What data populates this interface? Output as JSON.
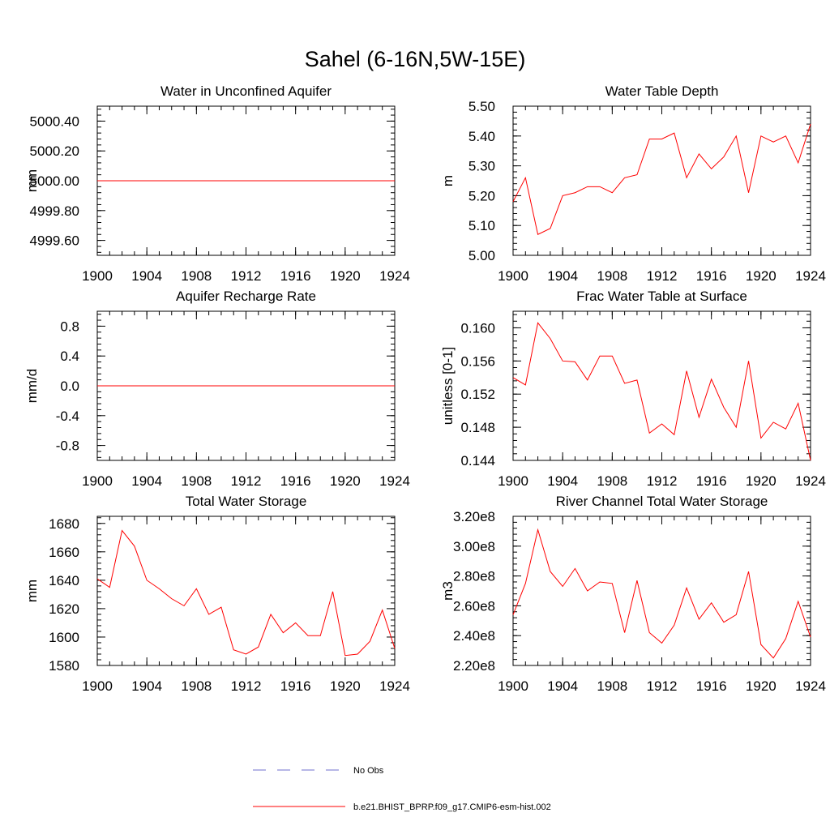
{
  "figure": {
    "title": "Sahel (6-16N,5W-15E)"
  },
  "colors": {
    "model_line": "#ff0000",
    "obs_line": "#6f6fcf",
    "axes": "#000000",
    "background": "#ffffff"
  },
  "legend": {
    "placement": "bottom-center",
    "items": [
      {
        "label": "No Obs",
        "style": "dashed",
        "color": "#6f6fcf"
      },
      {
        "label": "b.e21.BHIST_BPRP.f09_g17.CMIP6-esm-hist.002",
        "style": "solid",
        "color": "#ff0000"
      }
    ]
  },
  "chart_data": [
    {
      "type": "line",
      "title": "Water in Unconfined Aquifer",
      "xlabel": "",
      "ylabel": "mm",
      "xlim": [
        1900,
        1924
      ],
      "ylim": [
        4999.5,
        5000.5
      ],
      "xticks": [
        1900,
        1904,
        1908,
        1912,
        1916,
        1920,
        1924
      ],
      "yticks": [
        4999.6,
        4999.8,
        5000.0,
        5000.2,
        5000.4
      ],
      "ytick_labels": [
        "4999.60",
        "4999.80",
        "5000.00",
        "5000.20",
        "5000.40"
      ],
      "grid": false,
      "x": [
        1900,
        1924
      ],
      "series": [
        {
          "values": [
            5000.0,
            5000.0
          ]
        }
      ]
    },
    {
      "type": "line",
      "title": "Water Table Depth",
      "xlabel": "",
      "ylabel": "m",
      "xlim": [
        1900,
        1924
      ],
      "ylim": [
        5.0,
        5.5
      ],
      "xticks": [
        1900,
        1904,
        1908,
        1912,
        1916,
        1920,
        1924
      ],
      "yticks": [
        5.0,
        5.1,
        5.2,
        5.3,
        5.4,
        5.5
      ],
      "ytick_labels": [
        "5.00",
        "5.10",
        "5.20",
        "5.30",
        "5.40",
        "5.50"
      ],
      "grid": false,
      "x": [
        1900,
        1901,
        1902,
        1903,
        1904,
        1905,
        1906,
        1907,
        1908,
        1909,
        1910,
        1911,
        1912,
        1913,
        1914,
        1915,
        1916,
        1917,
        1918,
        1919,
        1920,
        1921,
        1922,
        1923,
        1924
      ],
      "series": [
        {
          "values": [
            5.18,
            5.26,
            5.07,
            5.09,
            5.2,
            5.21,
            5.23,
            5.23,
            5.21,
            5.26,
            5.27,
            5.39,
            5.39,
            5.41,
            5.26,
            5.34,
            5.29,
            5.33,
            5.4,
            5.21,
            5.4,
            5.38,
            5.4,
            5.31,
            5.44
          ]
        }
      ]
    },
    {
      "type": "line",
      "title": "Aquifer Recharge Rate",
      "xlabel": "",
      "ylabel": "mm/d",
      "xlim": [
        1900,
        1924
      ],
      "ylim": [
        -1.0,
        1.0
      ],
      "xticks": [
        1900,
        1904,
        1908,
        1912,
        1916,
        1920,
        1924
      ],
      "yticks": [
        -0.8,
        -0.4,
        0.0,
        0.4,
        0.8
      ],
      "ytick_labels": [
        "-0.8",
        "-0.4",
        "0.0",
        "0.4",
        "0.8"
      ],
      "grid": false,
      "x": [
        1900,
        1924
      ],
      "series": [
        {
          "values": [
            0.0,
            0.0
          ]
        }
      ]
    },
    {
      "type": "line",
      "title": "Frac Water Table at Surface",
      "xlabel": "",
      "ylabel": "unitless [0-1]",
      "xlim": [
        1900,
        1924
      ],
      "ylim": [
        0.144,
        0.162
      ],
      "xticks": [
        1900,
        1904,
        1908,
        1912,
        1916,
        1920,
        1924
      ],
      "yticks": [
        0.144,
        0.148,
        0.152,
        0.156,
        0.16
      ],
      "ytick_labels": [
        "0.144",
        "0.148",
        "0.152",
        "0.156",
        "0.160"
      ],
      "grid": false,
      "x": [
        1900,
        1901,
        1902,
        1903,
        1904,
        1905,
        1906,
        1907,
        1908,
        1909,
        1910,
        1911,
        1912,
        1913,
        1914,
        1915,
        1916,
        1917,
        1918,
        1919,
        1920,
        1921,
        1922,
        1923,
        1924
      ],
      "series": [
        {
          "values": [
            0.154,
            0.1531,
            0.1606,
            0.1587,
            0.156,
            0.1559,
            0.1537,
            0.1566,
            0.1566,
            0.1533,
            0.1537,
            0.1473,
            0.1484,
            0.1471,
            0.1548,
            0.1492,
            0.1538,
            0.1504,
            0.148,
            0.156,
            0.1467,
            0.1486,
            0.1478,
            0.1509,
            0.144
          ]
        }
      ]
    },
    {
      "type": "line",
      "title": "Total Water Storage",
      "xlabel": "",
      "ylabel": "mm",
      "xlim": [
        1900,
        1924
      ],
      "ylim": [
        1580,
        1685
      ],
      "xticks": [
        1900,
        1904,
        1908,
        1912,
        1916,
        1920,
        1924
      ],
      "yticks": [
        1580,
        1600,
        1620,
        1640,
        1660,
        1680
      ],
      "ytick_labels": [
        "1580",
        "1600",
        "1620",
        "1640",
        "1660",
        "1680"
      ],
      "grid": false,
      "x": [
        1900,
        1901,
        1902,
        1903,
        1904,
        1905,
        1906,
        1907,
        1908,
        1909,
        1910,
        1911,
        1912,
        1913,
        1914,
        1915,
        1916,
        1917,
        1918,
        1919,
        1920,
        1921,
        1922,
        1923,
        1924
      ],
      "series": [
        {
          "values": [
            1641,
            1635,
            1675,
            1664,
            1640,
            1634,
            1627,
            1622,
            1634,
            1616,
            1621,
            1591,
            1588,
            1593,
            1616,
            1603,
            1610,
            1601,
            1601,
            1632,
            1587,
            1588,
            1597,
            1619,
            1592
          ]
        }
      ]
    },
    {
      "type": "line",
      "title": "River Channel Total Water Storage",
      "xlabel": "",
      "ylabel": "m3",
      "xlim": [
        1900,
        1924
      ],
      "ylim": [
        220000000,
        320000000
      ],
      "xticks": [
        1900,
        1904,
        1908,
        1912,
        1916,
        1920,
        1924
      ],
      "yticks": [
        220000000,
        240000000,
        260000000,
        280000000,
        300000000,
        320000000
      ],
      "ytick_labels": [
        "2.20e8",
        "2.40e8",
        "2.60e8",
        "2.80e8",
        "3.00e8",
        "3.20e8"
      ],
      "grid": false,
      "x": [
        1900,
        1901,
        1902,
        1903,
        1904,
        1905,
        1906,
        1907,
        1908,
        1909,
        1910,
        1911,
        1912,
        1913,
        1914,
        1915,
        1916,
        1917,
        1918,
        1919,
        1920,
        1921,
        1922,
        1923,
        1924
      ],
      "series": [
        {
          "values": [
            254000000,
            275000000,
            311000000,
            283000000,
            273000000,
            285000000,
            270000000,
            276000000,
            275000000,
            242000000,
            277000000,
            242000000,
            235000000,
            247000000,
            272000000,
            251000000,
            262000000,
            249000000,
            254000000,
            283000000,
            234000000,
            225000000,
            238000000,
            263000000,
            239000000
          ]
        }
      ]
    }
  ]
}
